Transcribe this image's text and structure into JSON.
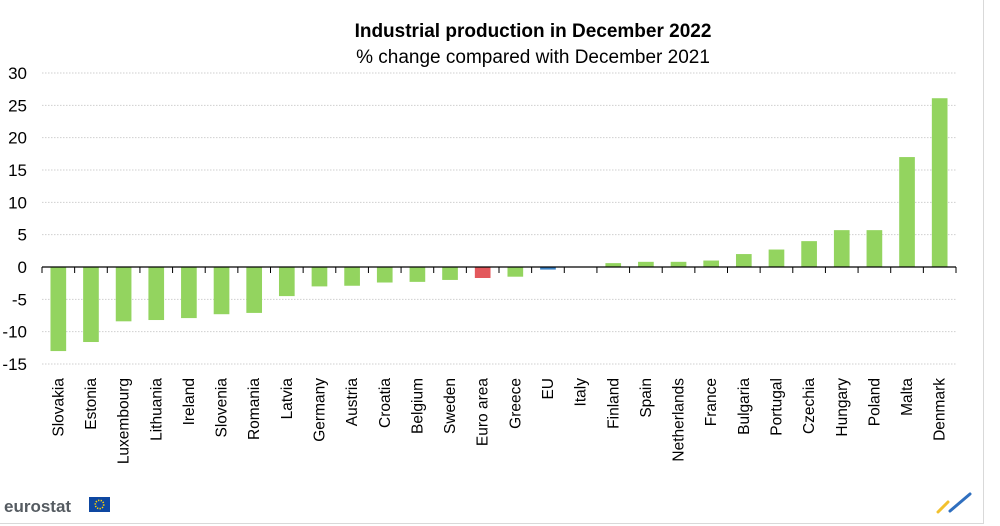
{
  "chart_data": {
    "type": "bar",
    "title": "Industrial production in December 2022",
    "subtitle": "% change compared with December 2021",
    "xlabel": "",
    "ylabel": "",
    "ylim": [
      -15,
      30
    ],
    "yticks": [
      30,
      25,
      20,
      15,
      10,
      5,
      0,
      -5,
      -10,
      -15
    ],
    "categories": [
      "Slovakia",
      "Estonia",
      "Luxembourg",
      "Lithuania",
      "Ireland",
      "Slovenia",
      "Romania",
      "Latvia",
      "Germany",
      "Austria",
      "Croatia",
      "Belgium",
      "Sweden",
      "Euro area",
      "Greece",
      "EU",
      "Italy",
      "Finland",
      "Spain",
      "Netherlands",
      "France",
      "Bulgaria",
      "Portugal",
      "Czechia",
      "Hungary",
      "Poland",
      "Malta",
      "Denmark"
    ],
    "values": [
      -13.0,
      -11.6,
      -8.4,
      -8.2,
      -7.9,
      -7.3,
      -7.1,
      -4.5,
      -3.0,
      -2.9,
      -2.4,
      -2.3,
      -2.0,
      -1.7,
      -1.5,
      -0.4,
      0.0,
      0.6,
      0.8,
      0.8,
      1.0,
      2.0,
      2.7,
      4.0,
      5.7,
      5.7,
      17.0,
      26.1
    ],
    "bar_colors": {
      "country": "#93d45f",
      "Euro area": "#e3585c",
      "EU": "#3b82c4"
    },
    "grid": true
  },
  "footer": {
    "brand": "eurostat"
  }
}
